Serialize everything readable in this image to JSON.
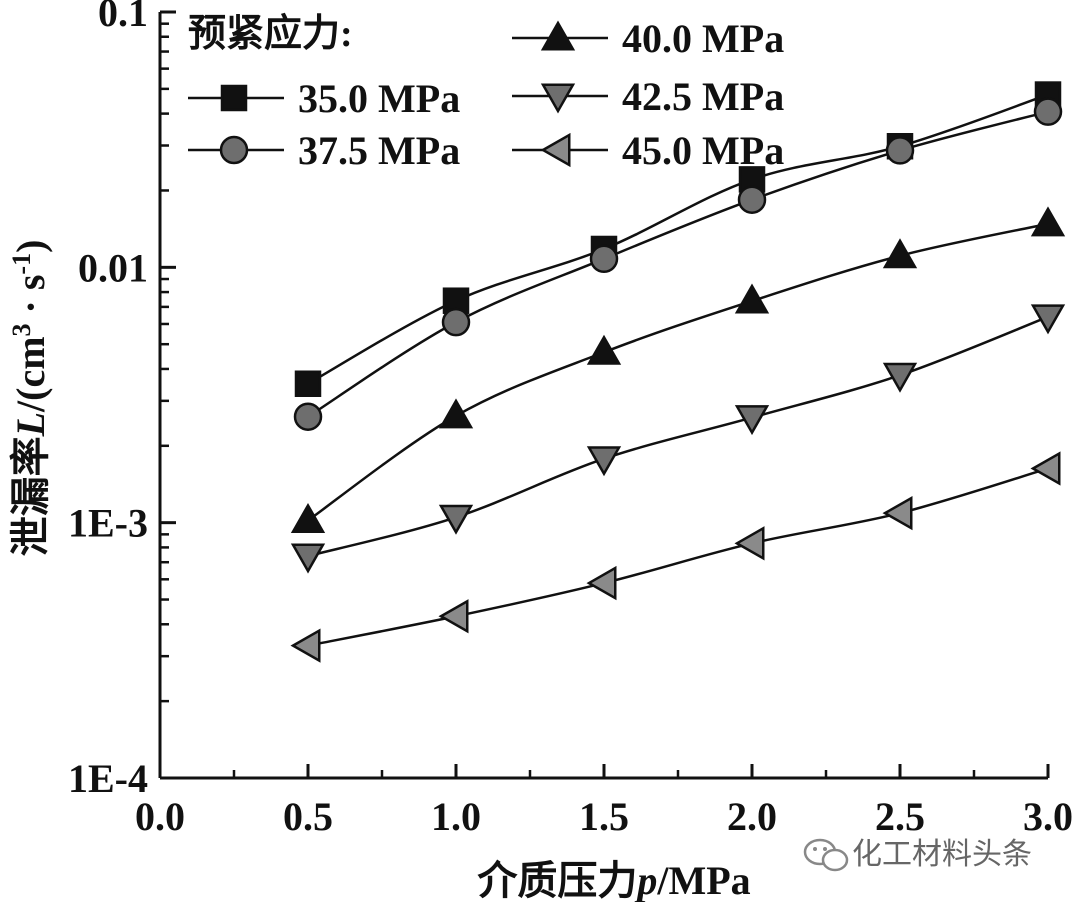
{
  "chart_data": {
    "type": "line",
    "title": "",
    "xlabel": "介质压力p/MPa",
    "xlabel_parts": {
      "prefix": "介质压力",
      "var": "p",
      "suffix": "/MPa"
    },
    "ylabel": "泄漏率L/(cm3 · s-1)",
    "ylabel_parts": {
      "prefix": "泄漏率",
      "var": "L",
      "unit_open": "/(cm",
      "sup1": "3",
      "mid": " · s",
      "sup2": "-1",
      "close": ")"
    },
    "x_scale": "linear",
    "y_scale": "log",
    "xlim": [
      0.0,
      3.0
    ],
    "ylim": [
      0.0001,
      0.1
    ],
    "x_ticks": [
      0.0,
      0.5,
      1.0,
      1.5,
      2.0,
      2.5,
      3.0
    ],
    "x_tick_labels": [
      "0.0",
      "0.5",
      "1.0",
      "1.5",
      "2.0",
      "2.5",
      "3.0"
    ],
    "y_ticks": [
      0.0001,
      0.001,
      0.01,
      0.1
    ],
    "y_tick_labels": [
      "1E-4",
      "1E-3",
      "0.01",
      "0.1"
    ],
    "grid": false,
    "legend_title": "预紧应力:",
    "legend_position": "top",
    "x": [
      0.5,
      1.0,
      1.5,
      2.0,
      2.5,
      3.0
    ],
    "series": [
      {
        "name": "35.0 MPa",
        "marker": "square",
        "color": "#111111",
        "values": [
          0.0035,
          0.0074,
          0.0118,
          0.0221,
          0.0298,
          0.0475
        ]
      },
      {
        "name": "37.5 MPa",
        "marker": "circle",
        "color": "#6e6e6e",
        "values": [
          0.0026,
          0.0061,
          0.0108,
          0.0184,
          0.0287,
          0.0407
        ]
      },
      {
        "name": "40.0 MPa",
        "marker": "triangle-up",
        "color": "#111111",
        "values": [
          0.00102,
          0.00262,
          0.00465,
          0.00738,
          0.0111,
          0.0148
        ]
      },
      {
        "name": "42.5 MPa",
        "marker": "triangle-down",
        "color": "#6e6e6e",
        "values": [
          0.00074,
          0.00105,
          0.00178,
          0.00258,
          0.00378,
          0.0064
        ]
      },
      {
        "name": "45.0 MPa",
        "marker": "triangle-left",
        "color": "#8a8a8a",
        "values": [
          0.00033,
          0.00043,
          0.00058,
          0.00083,
          0.00109,
          0.00163
        ]
      }
    ]
  },
  "watermark": {
    "text": "化工材料头条",
    "icon": "wechat-icon"
  }
}
